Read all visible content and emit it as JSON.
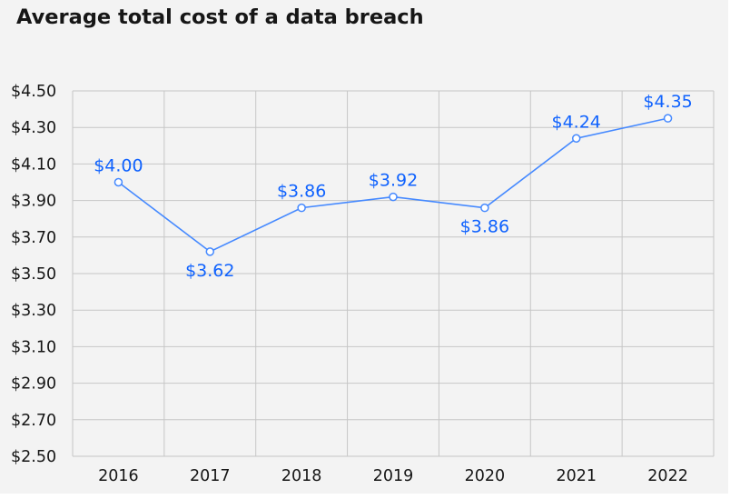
{
  "chart_data": {
    "type": "line",
    "title": "Average total cost of a data breach",
    "xlabel": "",
    "ylabel": "",
    "categories": [
      "2016",
      "2017",
      "2018",
      "2019",
      "2020",
      "2021",
      "2022"
    ],
    "series": [
      {
        "name": "Average total cost",
        "values": [
          4.0,
          3.62,
          3.86,
          3.92,
          3.86,
          4.24,
          4.35
        ],
        "labels": [
          "$4.00",
          "$3.62",
          "$3.86",
          "$3.92",
          "$3.86",
          "$4.24",
          "$4.35"
        ],
        "label_positions": [
          "above",
          "below",
          "above",
          "above",
          "below",
          "above",
          "above"
        ]
      }
    ],
    "ylim": [
      2.5,
      4.5
    ],
    "yticks": [
      2.5,
      2.7,
      2.9,
      3.1,
      3.3,
      3.5,
      3.7,
      3.9,
      4.1,
      4.3,
      4.5
    ],
    "ytick_labels": [
      "$2.50",
      "$2.70",
      "$2.90",
      "$3.10",
      "$3.30",
      "$3.50",
      "$3.70",
      "$3.90",
      "$4.10",
      "$4.30",
      "$4.50"
    ],
    "grid": true,
    "legend": "none"
  },
  "colors": {
    "line": "#4589ff",
    "label": "#0f62fe",
    "marker_fill": "#ffffff",
    "grid": "#c6c6c6",
    "text": "#161616"
  }
}
